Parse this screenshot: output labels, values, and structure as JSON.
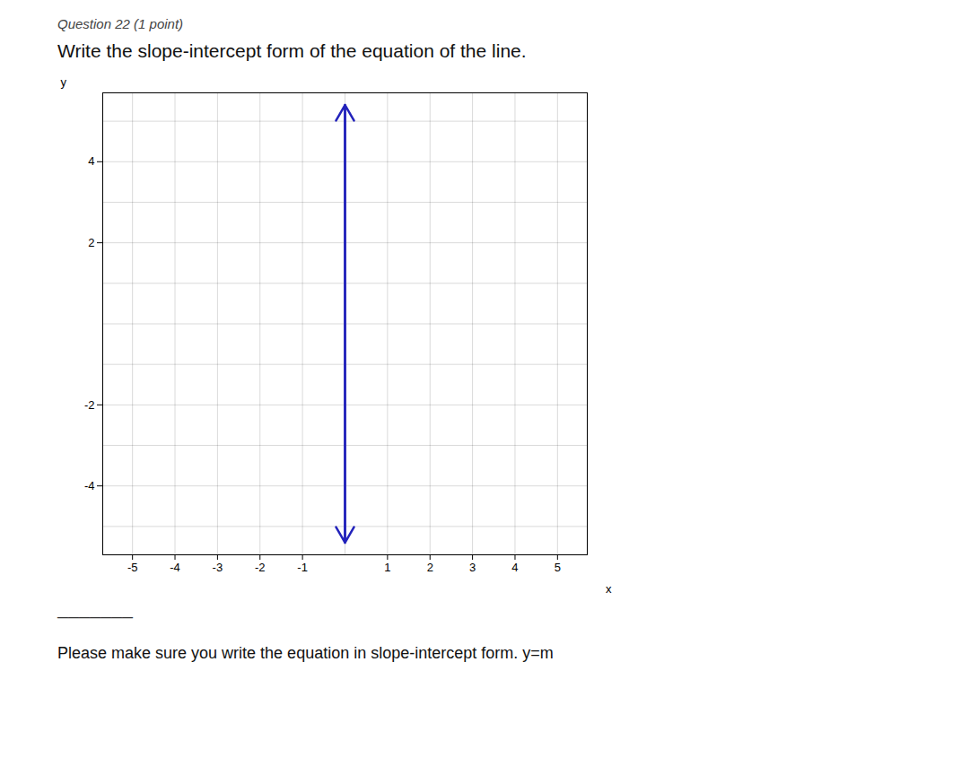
{
  "chart_data": {
    "type": "line",
    "title": "Question 22 (1 point)",
    "subtitle": "Write the slope-intercept form of the equation of the line.",
    "annotations": [
      "———————",
      "Please make sure you write the equation in slope-intercept form.  y=m"
    ],
    "x": [
      0,
      0
    ],
    "series": [
      {
        "color": "#2222bb",
        "marker": "arrow",
        "values": [
          -5.4,
          5.4
        ]
      }
    ],
    "xlabel": "x",
    "ylabel": "y",
    "xlim": [
      -5.7,
      5.7
    ],
    "ylim": [
      -5.7,
      5.7
    ],
    "xticks": [
      -5,
      -4,
      -3,
      -2,
      -1,
      1,
      2,
      3,
      4,
      5
    ],
    "yticks": [
      -4,
      -2,
      2,
      4
    ],
    "grid": true
  }
}
